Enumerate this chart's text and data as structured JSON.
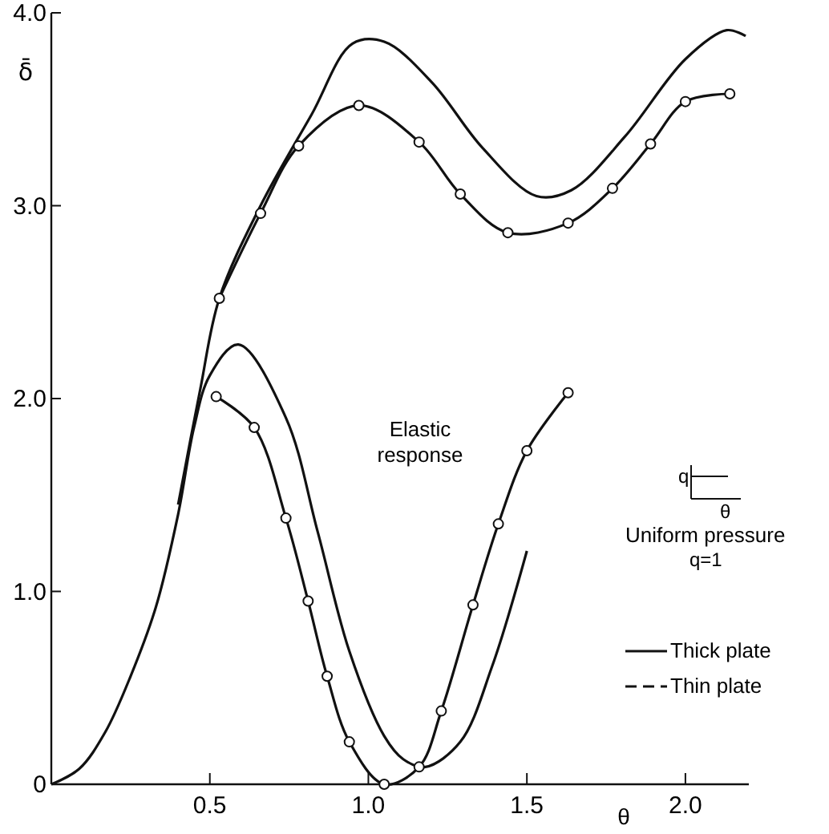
{
  "chart_data": {
    "type": "line",
    "xlabel": "θ",
    "ylabel": "δ̄",
    "xlim": [
      0,
      2.2
    ],
    "ylim": [
      0,
      4
    ],
    "xticks": [
      {
        "value": 0.5,
        "label": "0.5"
      },
      {
        "value": 1,
        "label": "1.0"
      },
      {
        "value": 1.5,
        "label": "1.5"
      },
      {
        "value": 2,
        "label": "2.0"
      }
    ],
    "yticks": [
      0,
      {
        "value": 1,
        "label": "1.0"
      },
      {
        "value": 2,
        "label": "2.0"
      },
      {
        "value": 3,
        "label": "3.0"
      },
      {
        "value": 4,
        "label": "4.0"
      }
    ],
    "grid": false,
    "annotations": [
      "Elastic response",
      "Uniform pressure",
      "q=1",
      "q",
      "θ",
      "Thick plate",
      "Thin plate"
    ],
    "series": [
      {
        "color": "#111111",
        "marker": "none",
        "x": [
          0.4,
          0.47,
          0.53,
          0.66,
          0.82,
          0.95,
          1.05,
          1.2,
          1.36,
          1.53,
          1.64,
          1.81,
          2.0,
          2.13,
          2.19
        ],
        "values": [
          1.45,
          2.05,
          2.52,
          3.0,
          3.47,
          3.84,
          3.85,
          3.64,
          3.3,
          3.05,
          3.08,
          3.36,
          3.76,
          3.91,
          3.88
        ]
      },
      {
        "color": "#111111",
        "marker": "circle",
        "x": [
          0.53,
          0.66,
          0.78,
          0.97,
          1.16,
          1.29,
          1.44,
          1.63,
          1.77,
          1.89,
          2.0,
          2.14
        ],
        "values": [
          2.52,
          2.96,
          3.31,
          3.52,
          3.33,
          3.06,
          2.86,
          2.91,
          3.09,
          3.32,
          3.54,
          3.58
        ]
      },
      {
        "color": "#111111",
        "marker": "none",
        "x": [
          0,
          0.088,
          0.17,
          0.25,
          0.33,
          0.4,
          0.45,
          0.5,
          0.59,
          0.74,
          0.84,
          0.94,
          1.05,
          1.11,
          1.18,
          1.29,
          1.39,
          1.5
        ],
        "values": [
          0,
          0.08,
          0.27,
          0.56,
          0.92,
          1.4,
          1.85,
          2.12,
          2.28,
          1.9,
          1.31,
          0.69,
          0.25,
          0.13,
          0.09,
          0.22,
          0.61,
          1.21
        ]
      },
      {
        "color": "#111111",
        "marker": "circle",
        "x": [
          0.52,
          0.64,
          0.74,
          0.81,
          0.87,
          0.94,
          1.05,
          1.16,
          1.23,
          1.33,
          1.41,
          1.5,
          1.63
        ],
        "values": [
          2.01,
          1.85,
          1.38,
          0.95,
          0.56,
          0.22,
          0,
          0.09,
          0.38,
          0.93,
          1.35,
          1.73,
          2.03
        ]
      }
    ]
  }
}
